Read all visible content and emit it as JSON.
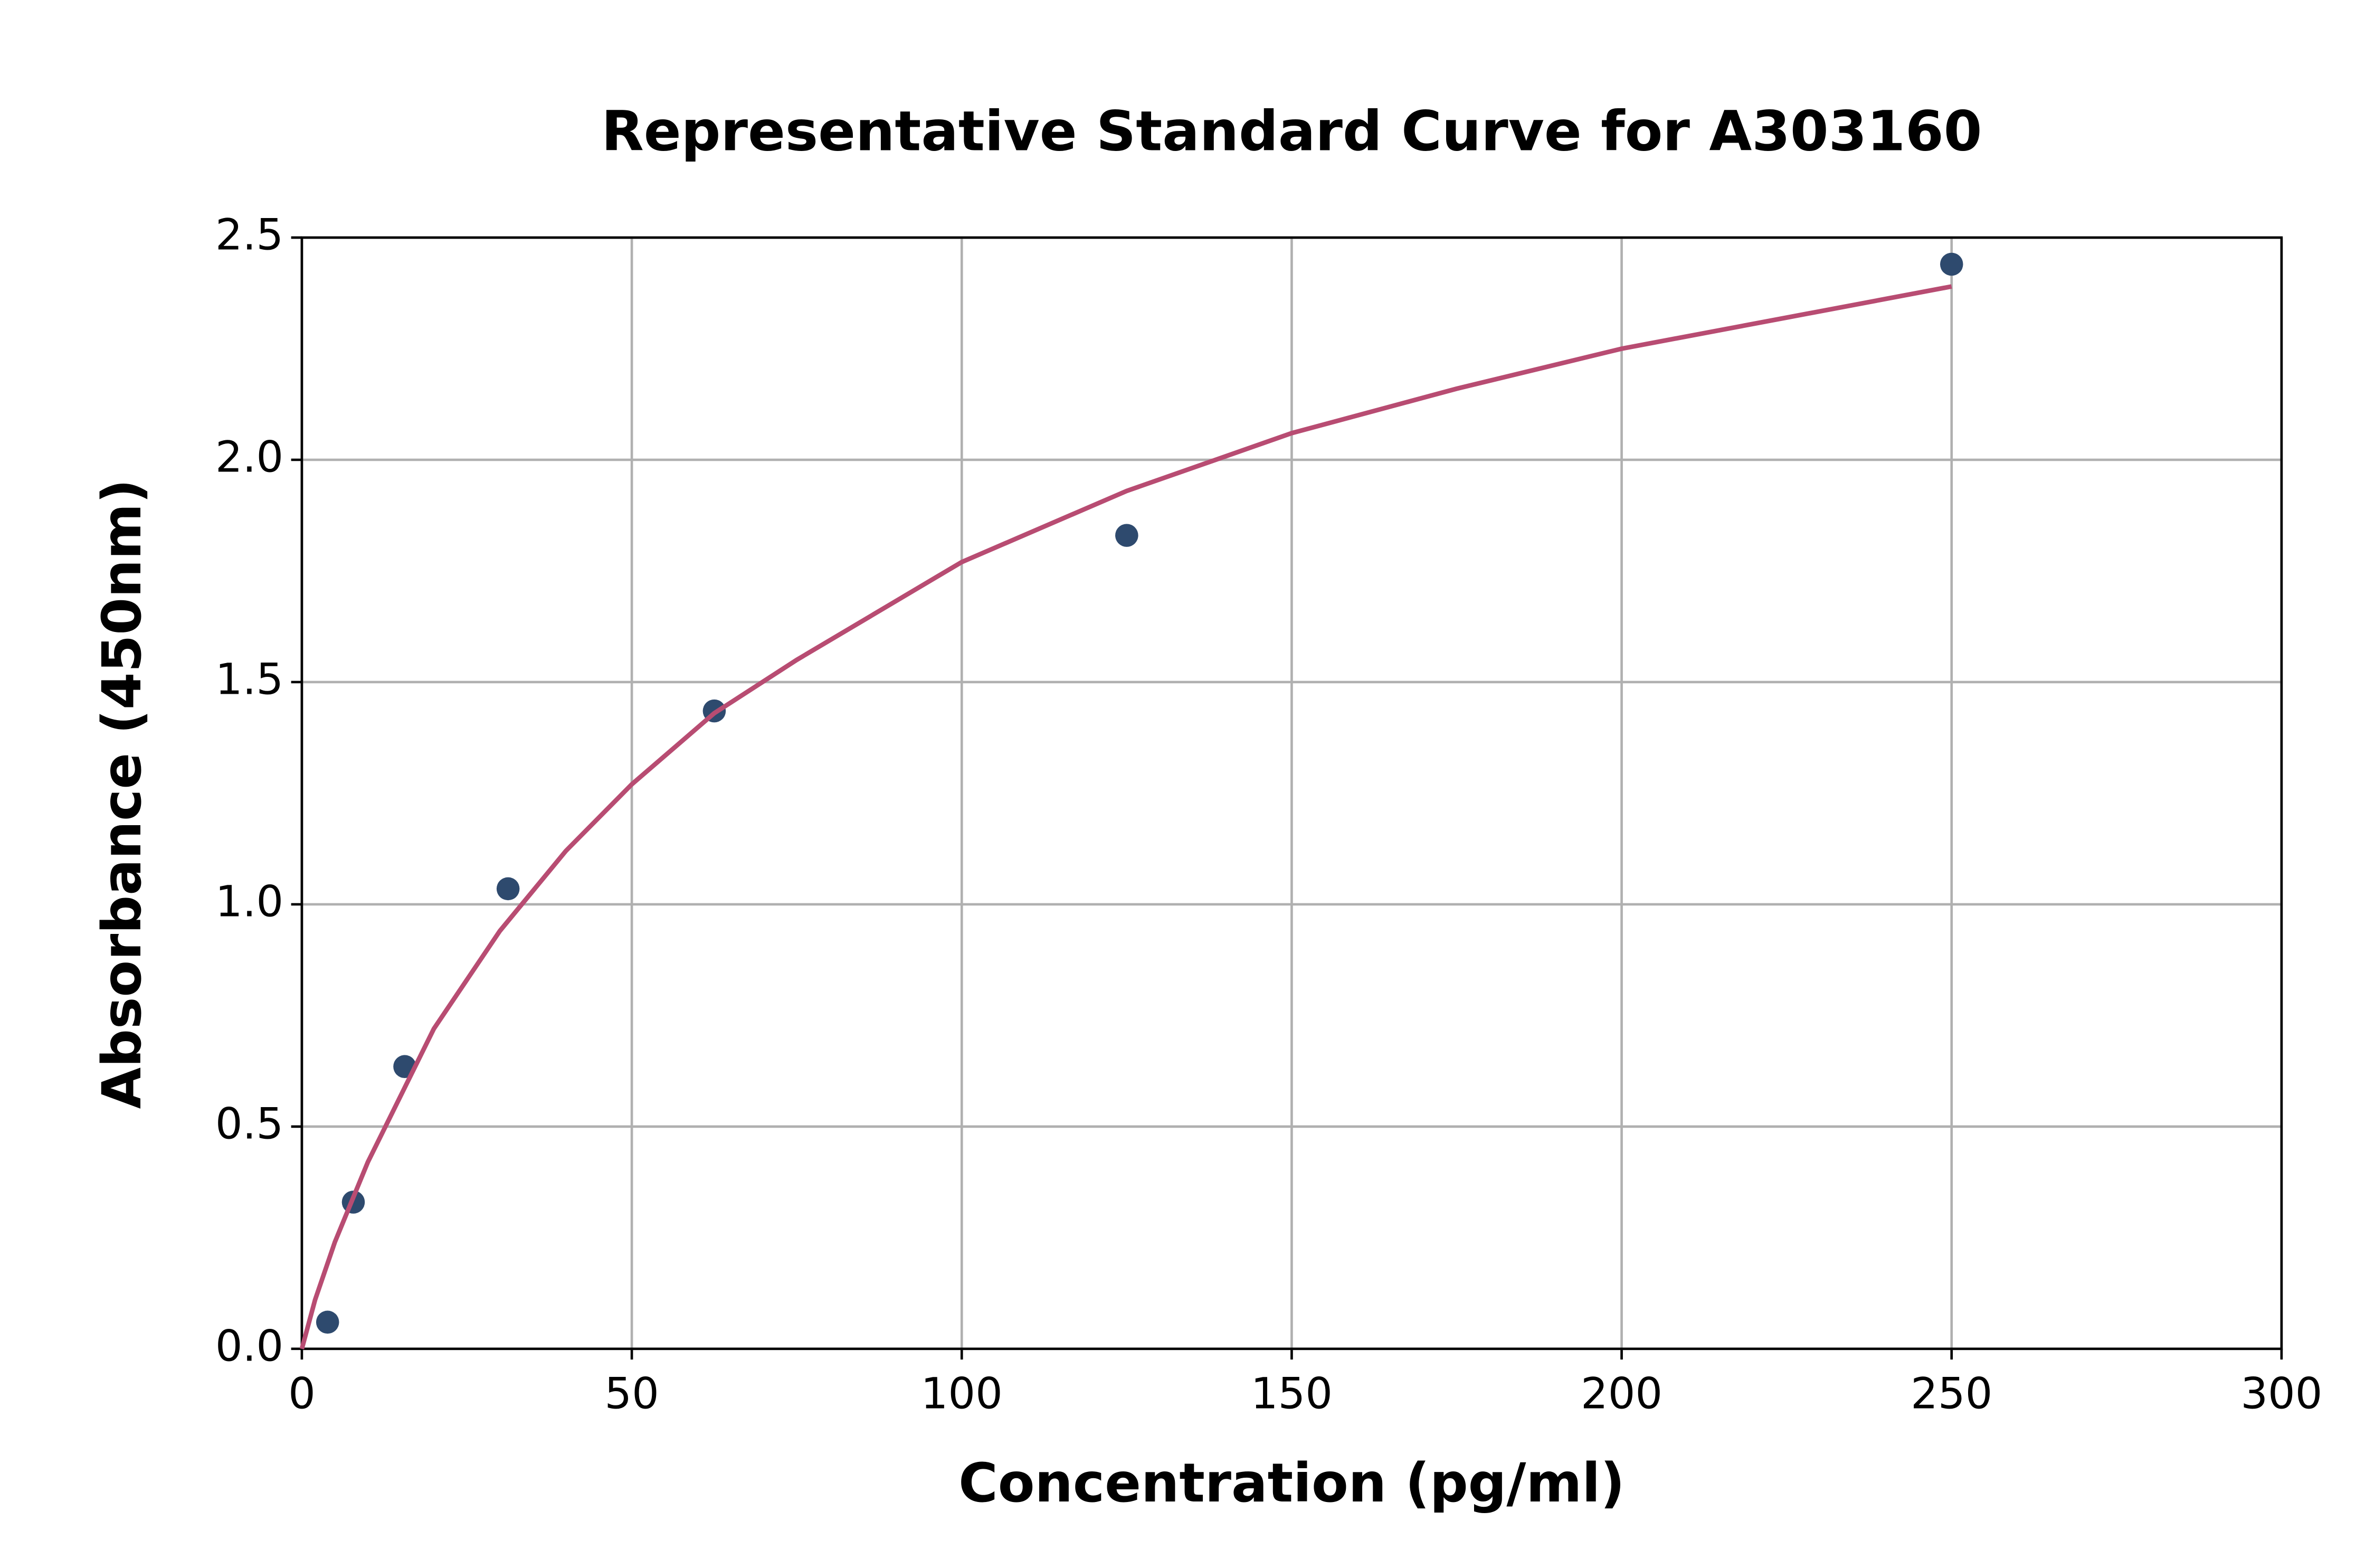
{
  "chart_data": {
    "type": "scatter",
    "title": "Representative Standard Curve for A303160",
    "x_label": "Concentration (pg/ml)",
    "y_label": "Absorbance (450nm)",
    "xlim": [
      0,
      300
    ],
    "ylim": [
      0,
      2.5
    ],
    "xticks": [
      0,
      50,
      100,
      150,
      200,
      250,
      300
    ],
    "yticks": [
      {
        "value": 0,
        "label": "0.0"
      },
      0.5,
      {
        "value": 1,
        "label": "1.0"
      },
      1.5,
      {
        "value": 2,
        "label": "2.0"
      },
      2.5
    ],
    "grid": true,
    "series": [
      {
        "mode": "markers",
        "color": "#2e4a6e",
        "x": [
          3.9,
          7.8,
          15.6,
          31.25,
          62.5,
          125,
          250
        ],
        "values": [
          0.06,
          0.33,
          0.635,
          1.035,
          1.435,
          1.83,
          2.44
        ]
      },
      {
        "mode": "line",
        "color": "#b84c72",
        "x": [
          0,
          2,
          5,
          10,
          20,
          30,
          40,
          50,
          62.5,
          75,
          100,
          125,
          150,
          175,
          200,
          225,
          250
        ],
        "values": [
          0,
          0.11,
          0.24,
          0.42,
          0.72,
          0.94,
          1.12,
          1.27,
          1.43,
          1.55,
          1.77,
          1.93,
          2.06,
          2.16,
          2.25,
          2.32,
          2.39
        ]
      }
    ]
  }
}
